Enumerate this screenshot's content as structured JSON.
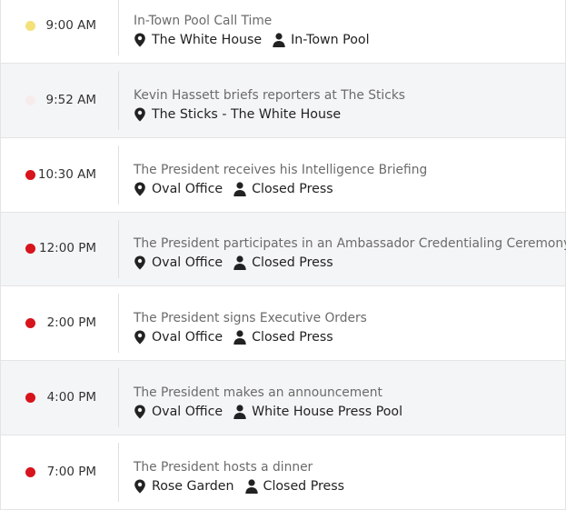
{
  "events": [
    {
      "time": "9:00 AM",
      "title": "In-Town Pool Call Time",
      "location": "The White House",
      "press": "In-Town Pool",
      "dot_color": "#f4e17a",
      "shaded": false
    },
    {
      "time": "9:52 AM",
      "title": "Kevin Hassett briefs reporters at The Sticks",
      "location": "The Sticks - The White House",
      "press": "",
      "dot_color": "#f7ecec",
      "shaded": true
    },
    {
      "time": "10:30 AM",
      "title": "The President receives his Intelligence Briefing",
      "location": "Oval Office",
      "press": "Closed Press",
      "dot_color": "#d7141c",
      "shaded": false
    },
    {
      "time": "12:00 PM",
      "title": "The President participates in an Ambassador Credentialing Ceremony",
      "location": "Oval Office",
      "press": "Closed Press",
      "dot_color": "#d7141c",
      "shaded": true
    },
    {
      "time": "2:00 PM",
      "title": "The President signs Executive Orders",
      "location": "Oval Office",
      "press": "Closed Press",
      "dot_color": "#d7141c",
      "shaded": false
    },
    {
      "time": "4:00 PM",
      "title": "The President makes an announcement",
      "location": "Oval Office",
      "press": "White House Press Pool",
      "dot_color": "#d7141c",
      "shaded": true
    },
    {
      "time": "7:00 PM",
      "title": "The President hosts a dinner",
      "location": "Rose Garden",
      "press": "Closed Press",
      "dot_color": "#d7141c",
      "shaded": false
    }
  ],
  "icons": {
    "location": "map-pin-icon",
    "press": "person-icon"
  }
}
